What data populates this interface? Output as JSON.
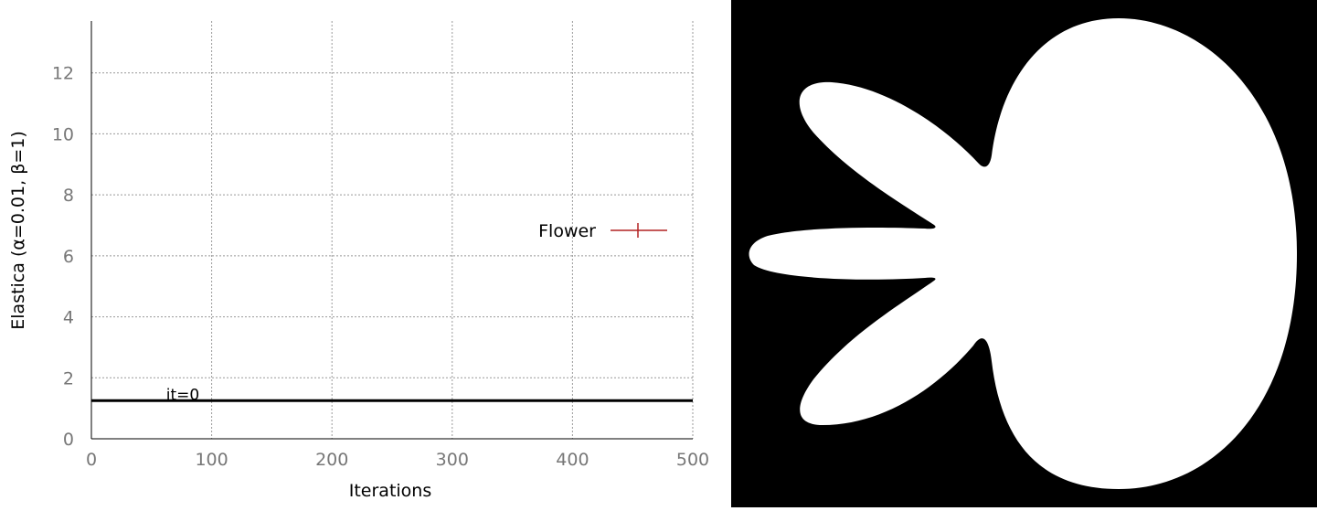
{
  "chart_data": {
    "type": "line",
    "xlabel": "Iterations",
    "ylabel": "Elastica (α=0.01, β=1)",
    "xlim": [
      0,
      500
    ],
    "ylim": [
      0,
      13.7
    ],
    "xticks": [
      0,
      100,
      200,
      300,
      400,
      500
    ],
    "yticks": [
      0,
      2,
      4,
      6,
      8,
      10,
      12
    ],
    "grid": true,
    "legend_position": "right",
    "series": [
      {
        "name": "Flower",
        "color": "#b22222",
        "marker": "vertical-tick",
        "x": [],
        "y": []
      }
    ],
    "reference_line": {
      "y": 1.25,
      "color": "#000000"
    },
    "annotations": [
      {
        "text": "it=0",
        "x": 50,
        "y": 1.25
      }
    ]
  },
  "shape_image": {
    "description_icon": "flower-shape-icon",
    "background": "#000000",
    "foreground": "#ffffff"
  }
}
